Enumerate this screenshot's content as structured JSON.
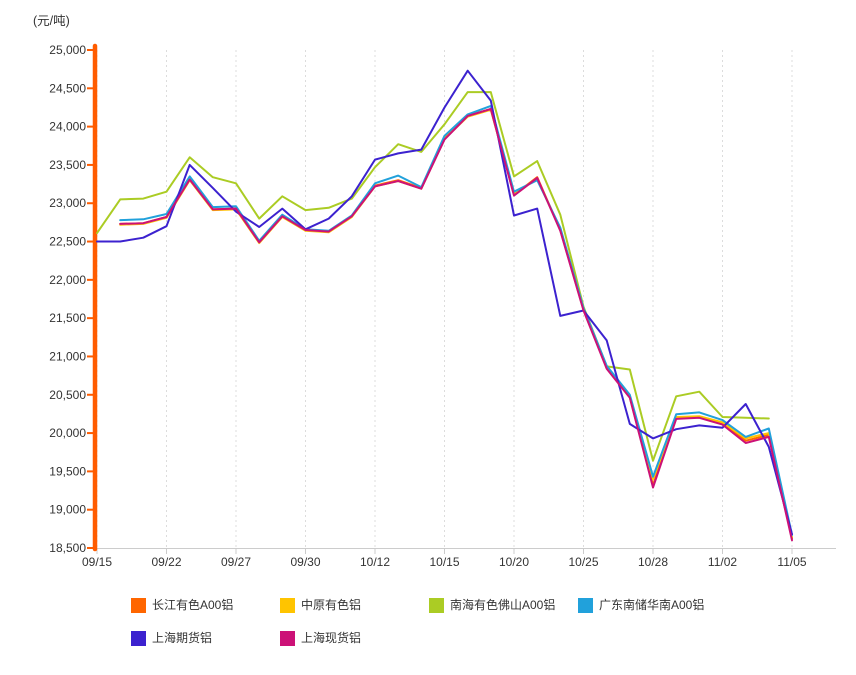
{
  "unit_label": "(元/吨)",
  "chart_data": {
    "type": "line",
    "title": "",
    "xlabel": "",
    "ylabel": "元/吨",
    "y_min": 18500,
    "y_max": 25000,
    "y_step": 500,
    "y_tick_labels": [
      "25,000",
      "24,500",
      "24,000",
      "23,500",
      "23,000",
      "22,500",
      "22,000",
      "21,500",
      "21,000",
      "20,500",
      "20,000",
      "19,500",
      "19,000",
      "18,500"
    ],
    "x_tick_labels": [
      "09/15",
      "09/22",
      "09/27",
      "09/30",
      "10/12",
      "10/15",
      "10/20",
      "10/25",
      "10/28",
      "11/02",
      "11/05"
    ],
    "x": [
      "09/15",
      "09/16",
      "09/17",
      "09/22",
      "09/23",
      "09/24",
      "09/27",
      "09/28",
      "09/29",
      "09/30",
      "10/08",
      "10/11",
      "10/12",
      "10/13",
      "10/14",
      "10/15",
      "10/18",
      "10/19",
      "10/20",
      "10/21",
      "10/22",
      "10/25",
      "10/26",
      "10/27",
      "10/28",
      "10/29",
      "11/01",
      "11/02",
      "11/03",
      "11/04",
      "11/05"
    ],
    "grid": "vertical-dashed",
    "legend_position": "bottom",
    "axis_color": "#FF5C00",
    "gridline_color": "#DCDCDC",
    "baseline_color": "#CCCCCC",
    "label_color": "#333333",
    "series": [
      {
        "name": "长江有色A00铝",
        "slug": "changjiang-a00",
        "color": "#FF6600",
        "values": [
          null,
          22730,
          22740,
          22820,
          23310,
          22920,
          22930,
          22490,
          22830,
          22650,
          22630,
          22830,
          23230,
          23300,
          23200,
          23850,
          24140,
          24230,
          23110,
          23340,
          22650,
          21610,
          20850,
          20470,
          19320,
          20200,
          20210,
          20125,
          19900,
          19975,
          18620
        ]
      },
      {
        "name": "中原有色铝",
        "slug": "zhongyuan",
        "color": "#FFC400",
        "values": [
          null,
          22720,
          22730,
          22810,
          23300,
          22910,
          22920,
          22480,
          22820,
          22640,
          22620,
          22820,
          23220,
          23290,
          23190,
          23840,
          24130,
          24220,
          23120,
          23320,
          22660,
          21620,
          20860,
          20480,
          19400,
          20210,
          20220,
          20140,
          19930,
          20000,
          18640
        ]
      },
      {
        "name": "南海有色佛山A00铝",
        "slug": "nanhai-foshan-a00",
        "color": "#ABCC24",
        "values": [
          22610,
          23050,
          23060,
          23150,
          23600,
          23340,
          23260,
          22800,
          23090,
          22910,
          22940,
          23060,
          23470,
          23770,
          23670,
          24030,
          24450,
          24450,
          23350,
          23550,
          22850,
          21650,
          20870,
          20830,
          19640,
          20480,
          20540,
          20210,
          20200,
          20190,
          null
        ]
      },
      {
        "name": "广东南储华南A00铝",
        "slug": "guangdong-nanchu-a00",
        "color": "#21A1DB",
        "values": [
          null,
          22780,
          22790,
          22860,
          23350,
          22950,
          22960,
          22510,
          22850,
          22660,
          22640,
          22840,
          23260,
          23360,
          23210,
          23880,
          24160,
          24270,
          23150,
          23300,
          22680,
          21630,
          20880,
          20500,
          19430,
          20245,
          20270,
          20170,
          19950,
          20060,
          18670
        ]
      },
      {
        "name": "上海期货铝",
        "slug": "shanghai-qihuo",
        "color": "#3C22CF",
        "values": [
          22500,
          22500,
          22550,
          22700,
          23500,
          23200,
          22890,
          22690,
          22930,
          22660,
          22800,
          23090,
          23570,
          23650,
          23700,
          24250,
          24730,
          24340,
          22840,
          22930,
          21530,
          21600,
          21210,
          20120,
          19930,
          20050,
          20100,
          20070,
          20380,
          19820,
          18680
        ]
      },
      {
        "name": "上海现货铝",
        "slug": "shanghai-xianhuo",
        "color": "#CC1177",
        "values": [
          null,
          22730,
          22740,
          22820,
          23310,
          22920,
          22930,
          22490,
          22830,
          22650,
          22630,
          22830,
          23220,
          23290,
          23190,
          23830,
          24140,
          24230,
          23100,
          23330,
          22640,
          21600,
          20840,
          20460,
          19290,
          20185,
          20200,
          20110,
          19870,
          19950,
          18600
        ]
      }
    ]
  }
}
